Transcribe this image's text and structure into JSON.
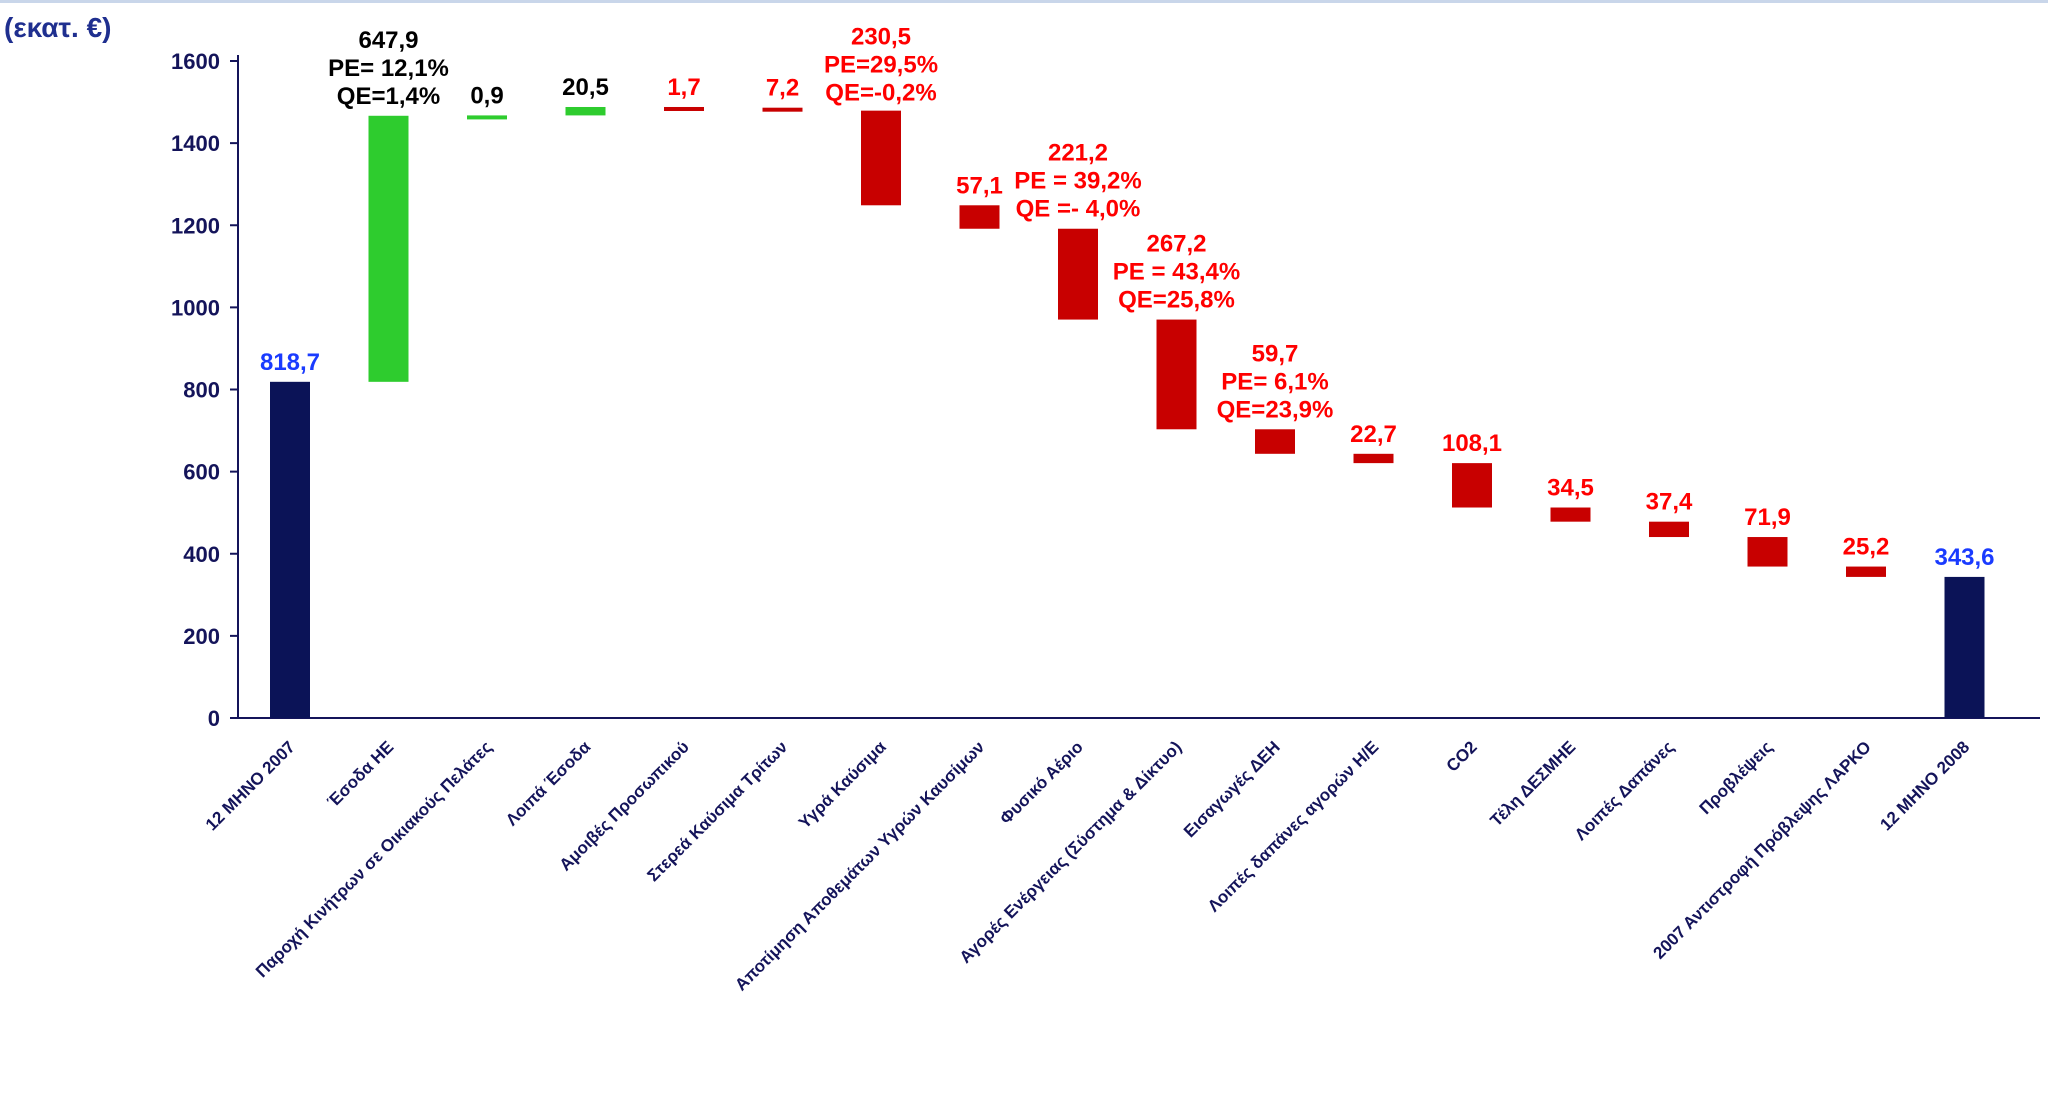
{
  "chart_data": {
    "type": "bar",
    "unit_label": "(εκατ. €)",
    "ylim": [
      0,
      1600
    ],
    "yticks": [
      "0",
      "200",
      "400",
      "600",
      "800",
      "1000",
      "1200",
      "1400",
      "1600"
    ],
    "grid": false,
    "categories": [
      "12 ΜΗΝΟ 2007",
      "Έσοδα ΗΕ",
      "Παροχή Κινήτρων σε Οικιακούς Πελάτες",
      "Λοιπά Έσοδα",
      "Αμοιβές Προσωπικού",
      "Στερεά Καύσιμα Τρίτων",
      "Υγρά Καύσιμα",
      "Αποτίμηση Αποθεμάτων Υγρών Καυσίμων",
      "Φυσικό Αέριο",
      "Αγορές Ενέργειας (Σύστημα & Δίκτυο)",
      "Εισαγωγές ΔΕΗ",
      "Λοιπές δαπάνες αγορών Η/Ε",
      "CO2",
      "Τέλη ΔΕΣΜΗΕ",
      "Λοιπές Δαπάνες",
      "Προβλέψεις",
      "2007 Αντιστροφή Πρόβλεψης ΛΑΡΚΟ",
      "12 ΜΗΝΟ 2008"
    ],
    "bars": [
      {
        "start": 0,
        "end": 818.7,
        "kind": "total",
        "labels": [
          "818,7"
        ]
      },
      {
        "start": 818.7,
        "end": 1466.6,
        "kind": "increase",
        "labels": [
          "647,9",
          "PE= 12,1%",
          "QE=1,4%"
        ]
      },
      {
        "start": 1466.6,
        "end": 1467.5,
        "kind": "increase",
        "labels": [
          "0,9"
        ]
      },
      {
        "start": 1467.5,
        "end": 1488.0,
        "kind": "increase",
        "labels": [
          "20,5"
        ]
      },
      {
        "start": 1488.0,
        "end": 1486.3,
        "kind": "decrease",
        "labels": [
          "1,7"
        ]
      },
      {
        "start": 1486.3,
        "end": 1479.1,
        "kind": "decrease",
        "labels": [
          "7,2"
        ]
      },
      {
        "start": 1479.1,
        "end": 1248.6,
        "kind": "decrease",
        "labels": [
          "230,5",
          "PE=29,5%",
          "QE=-0,2%"
        ]
      },
      {
        "start": 1248.6,
        "end": 1191.5,
        "kind": "decrease",
        "labels": [
          "57,1"
        ]
      },
      {
        "start": 1191.5,
        "end": 970.3,
        "kind": "decrease",
        "labels": [
          "221,2",
          "PE = 39,2%",
          "QE =- 4,0%"
        ]
      },
      {
        "start": 970.3,
        "end": 703.1,
        "kind": "decrease",
        "labels": [
          "267,2",
          "PE = 43,4%",
          "QE=25,8%"
        ]
      },
      {
        "start": 703.1,
        "end": 643.4,
        "kind": "decrease",
        "labels": [
          "59,7",
          "PE= 6,1%",
          "QE=23,9%"
        ]
      },
      {
        "start": 643.4,
        "end": 620.7,
        "kind": "decrease",
        "labels": [
          "22,7"
        ]
      },
      {
        "start": 620.7,
        "end": 512.6,
        "kind": "decrease",
        "labels": [
          "108,1"
        ]
      },
      {
        "start": 512.6,
        "end": 478.1,
        "kind": "decrease",
        "labels": [
          "34,5"
        ]
      },
      {
        "start": 478.1,
        "end": 440.7,
        "kind": "decrease",
        "labels": [
          "37,4"
        ]
      },
      {
        "start": 440.7,
        "end": 368.8,
        "kind": "decrease",
        "labels": [
          "71,9"
        ]
      },
      {
        "start": 368.8,
        "end": 343.6,
        "kind": "decrease",
        "labels": [
          "25,2"
        ]
      },
      {
        "start": 0,
        "end": 343.6,
        "kind": "total",
        "labels": [
          "343,6"
        ]
      }
    ],
    "colors": {
      "total": "#0b1357",
      "increase": "#2ecc2e",
      "decrease": "#c80000",
      "axis": "#14145a",
      "label_total": "#1a3bff",
      "label_increase": "#000000",
      "label_decrease": "#ff0000"
    }
  }
}
